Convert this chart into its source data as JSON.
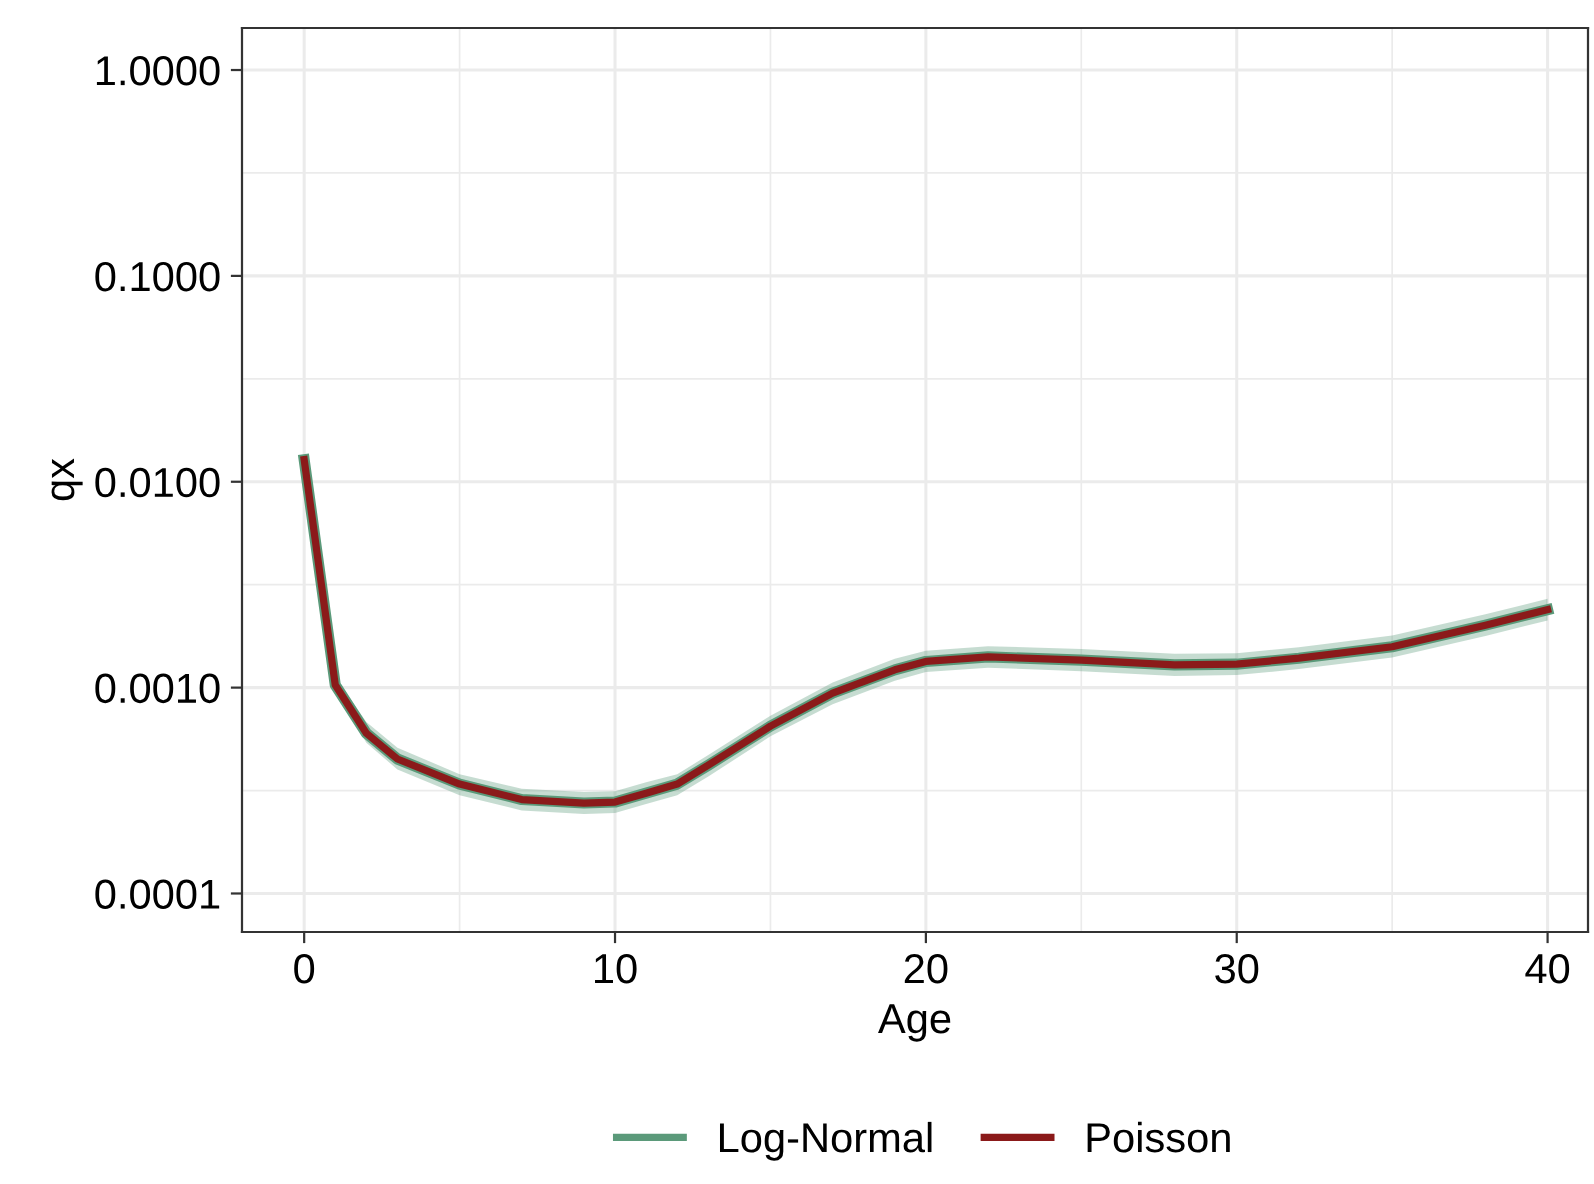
{
  "chart_data": {
    "type": "line",
    "xlabel": "Age",
    "ylabel": "qx",
    "x": [
      0,
      1,
      2,
      3,
      5,
      7,
      9,
      10,
      11,
      12,
      13,
      15,
      17,
      19,
      20,
      22,
      25,
      28,
      30,
      32,
      35,
      38,
      40
    ],
    "series": [
      {
        "name": "Log-Normal",
        "color": "#5b9a7a",
        "values": [
          0.0128,
          0.00103,
          0.0006,
          0.00045,
          0.00034,
          0.000286,
          0.000275,
          0.000278,
          0.000307,
          0.00034,
          0.00042,
          0.00065,
          0.00094,
          0.00122,
          0.00134,
          0.00141,
          0.00136,
          0.00129,
          0.0013,
          0.00139,
          0.00158,
          0.00201,
          0.00239
        ],
        "lower": [
          0.0125,
          0.00095,
          0.00054,
          0.0004,
          0.0003,
          0.000253,
          0.000243,
          0.000246,
          0.000272,
          0.0003,
          0.00037,
          0.00058,
          0.00083,
          0.00108,
          0.00119,
          0.00125,
          0.0012,
          0.00114,
          0.00115,
          0.00123,
          0.0014,
          0.00178,
          0.00212
        ],
        "upper": [
          0.0131,
          0.00112,
          0.00068,
          0.00051,
          0.00038,
          0.000323,
          0.000311,
          0.000314,
          0.000347,
          0.00038,
          0.00047,
          0.00073,
          0.00106,
          0.00138,
          0.00151,
          0.00159,
          0.00154,
          0.00146,
          0.00147,
          0.00157,
          0.00179,
          0.00227,
          0.0027
        ]
      },
      {
        "name": "Poisson",
        "color": "#8b1a1a",
        "values": [
          0.0128,
          0.00103,
          0.0006,
          0.00045,
          0.00034,
          0.000286,
          0.000275,
          0.000278,
          0.000307,
          0.00034,
          0.00042,
          0.00065,
          0.00094,
          0.00122,
          0.00134,
          0.00141,
          0.00136,
          0.00129,
          0.0013,
          0.00139,
          0.00158,
          0.00201,
          0.00239
        ]
      }
    ],
    "log": "y",
    "xlim": [
      -2,
      41.3
    ],
    "ylim": [
      6.5e-05,
      1.6
    ],
    "xticks": [
      0,
      10,
      20,
      30,
      40
    ],
    "yticks": [
      {
        "value": 0.0001,
        "label": "0.0001"
      },
      {
        "value": 0.001,
        "label": "0.0010"
      },
      {
        "value": 0.01,
        "label": "0.0100"
      },
      {
        "value": 0.1,
        "label": "0.1000"
      },
      {
        "value": 1,
        "label": "1.0000"
      }
    ],
    "grid": true,
    "legend": "bottom",
    "line_style": "solid",
    "marker": "none"
  }
}
